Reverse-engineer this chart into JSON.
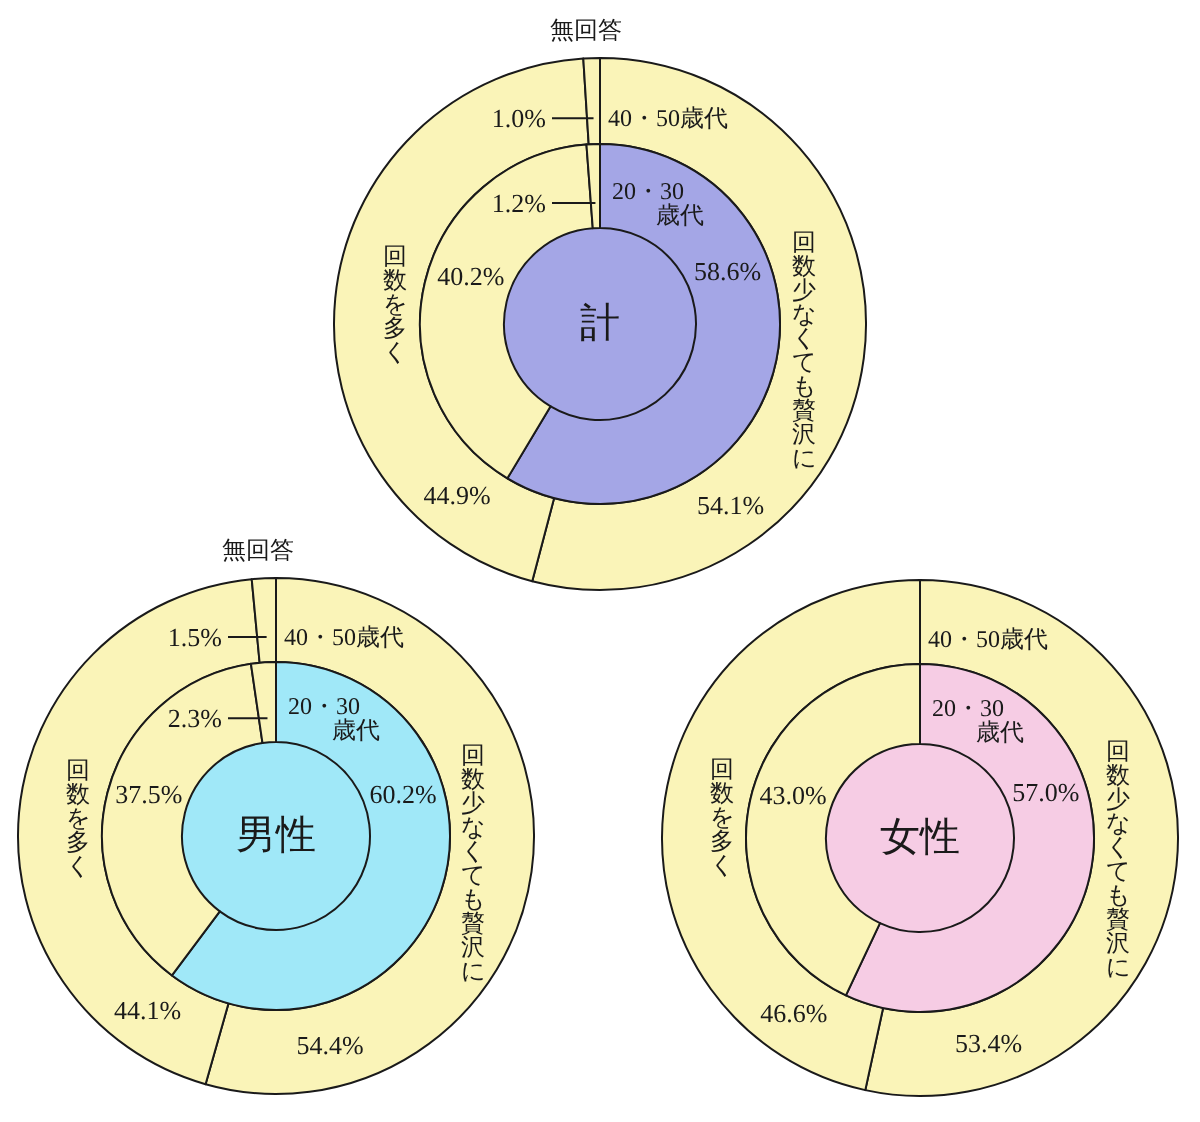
{
  "chart_data": [
    {
      "type": "donut",
      "title": "計",
      "categories": [
        "回数少なくても贅沢に",
        "回数を多く",
        "無回答"
      ],
      "series": [
        {
          "name": "40・50歳代",
          "values": [
            54.1,
            44.9,
            1.0
          ],
          "colors": [
            "#faf4b8",
            "#faf4b8",
            "#faf4b8"
          ],
          "value_labels": [
            "54.1%",
            "44.9%",
            "1.0%"
          ]
        },
        {
          "name": "20・30歳代",
          "values": [
            58.6,
            40.2,
            1.2
          ],
          "colors": [
            "#a4a6e6",
            "#faf4b8",
            "#faf4b8"
          ],
          "value_labels": [
            "58.6%",
            "40.2%",
            "1.2%"
          ]
        }
      ]
    },
    {
      "type": "donut",
      "title": "男性",
      "categories": [
        "回数少なくても贅沢に",
        "回数を多く",
        "無回答"
      ],
      "series": [
        {
          "name": "40・50歳代",
          "values": [
            54.4,
            44.1,
            1.5
          ],
          "colors": [
            "#faf4b8",
            "#faf4b8",
            "#faf4b8"
          ],
          "value_labels": [
            "54.4%",
            "44.1%",
            "1.5%"
          ]
        },
        {
          "name": "20・30歳代",
          "values": [
            60.2,
            37.5,
            2.3
          ],
          "colors": [
            "#a0e8f8",
            "#faf4b8",
            "#faf4b8"
          ],
          "value_labels": [
            "60.2%",
            "37.5%",
            "2.3%"
          ]
        }
      ]
    },
    {
      "type": "donut",
      "title": "女性",
      "categories": [
        "回数少なくても贅沢に",
        "回数を多く"
      ],
      "series": [
        {
          "name": "40・50歳代",
          "values": [
            53.4,
            46.6
          ],
          "colors": [
            "#faf4b8",
            "#faf4b8"
          ],
          "value_labels": [
            "53.4%",
            "46.6%"
          ]
        },
        {
          "name": "20・30歳代",
          "values": [
            57.0,
            43.0
          ],
          "colors": [
            "#f6cce4",
            "#faf4b8"
          ],
          "value_labels": [
            "57.0%",
            "43.0%"
          ]
        }
      ]
    }
  ]
}
